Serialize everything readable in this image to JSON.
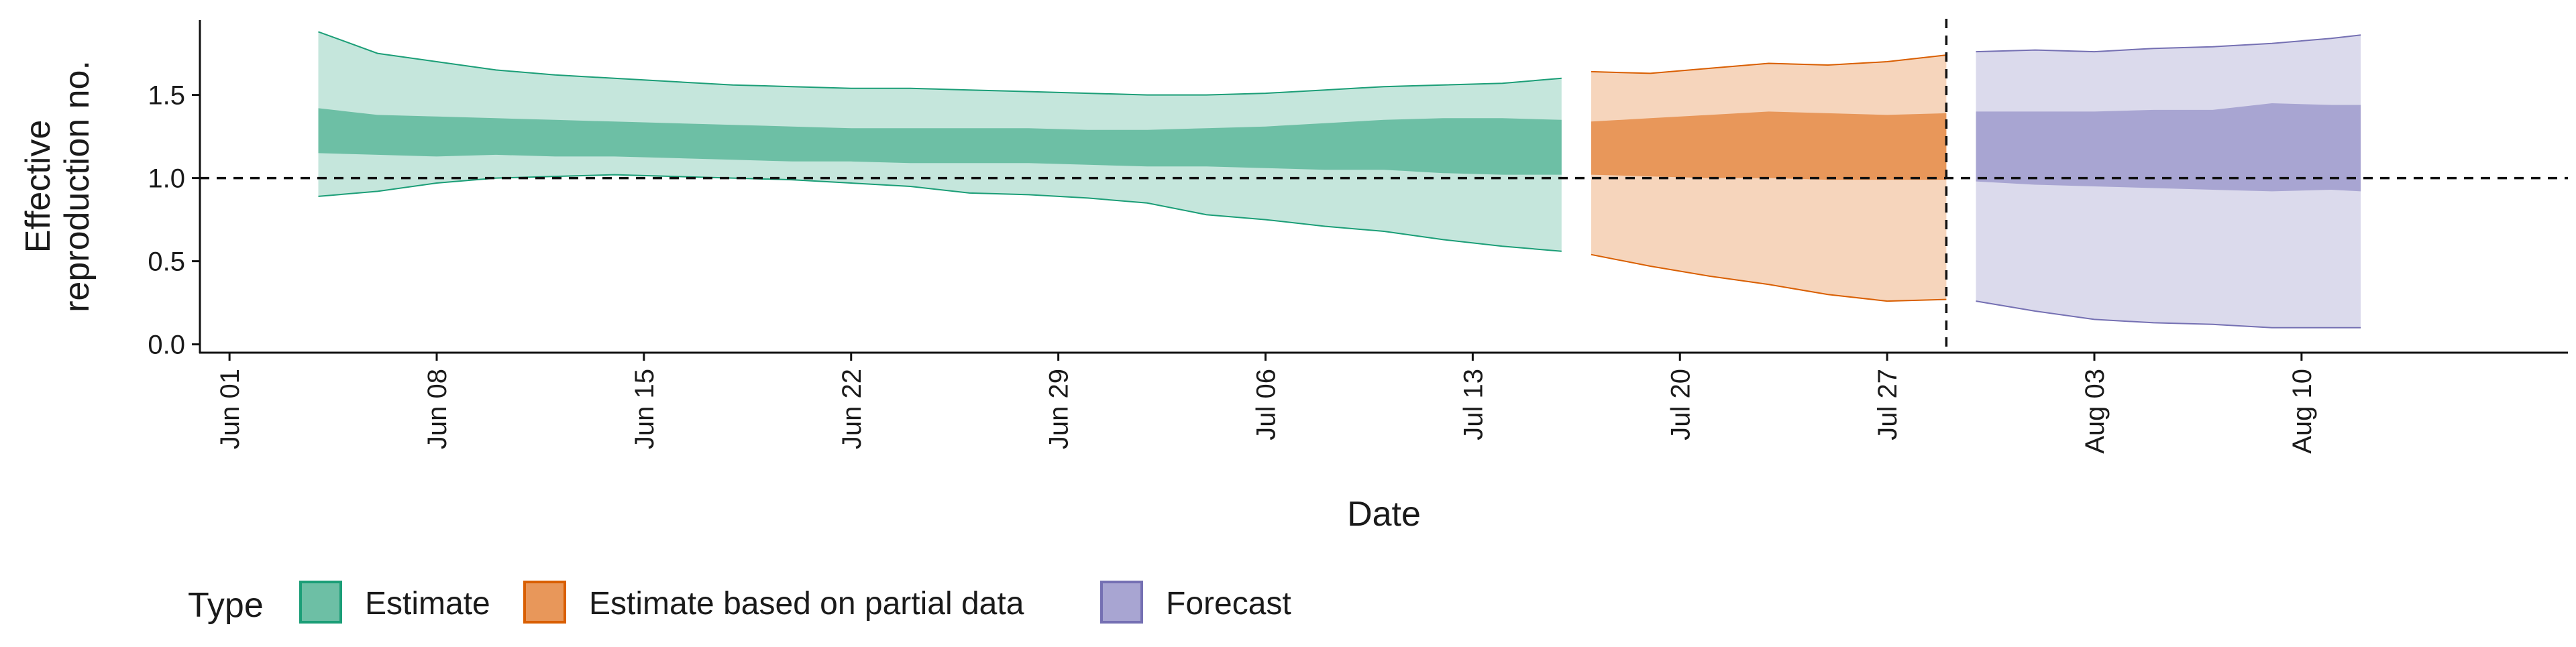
{
  "chart_data": {
    "type": "area",
    "title": "",
    "xlabel": "Date",
    "ylabel_lines": [
      "Effective",
      "reproduction no."
    ],
    "x_ticks": [
      "Jun 01",
      "Jun 08",
      "Jun 15",
      "Jun 22",
      "Jun 29",
      "Jul 06",
      "Jul 13",
      "Jul 20",
      "Jul 27",
      "Aug 03",
      "Aug 10"
    ],
    "x_tick_dates": [
      "2020-06-01",
      "2020-06-08",
      "2020-06-15",
      "2020-06-22",
      "2020-06-29",
      "2020-07-06",
      "2020-07-13",
      "2020-07-20",
      "2020-07-27",
      "2020-08-03",
      "2020-08-10"
    ],
    "xlim": [
      "2020-05-31",
      "2020-08-19"
    ],
    "y_ticks": [
      "0.0",
      "0.5",
      "1.0",
      "1.5"
    ],
    "ylim": [
      -0.05,
      1.95
    ],
    "hline": 1.0,
    "vline": "2020-07-29",
    "grid": false,
    "legend": {
      "title": "Type",
      "position": "bottom",
      "entries": [
        "Estimate",
        "Estimate based on partial data",
        "Forecast"
      ]
    },
    "colors": {
      "estimate_inner": "#6dbfa5",
      "estimate_outer": "#c5e6dc",
      "estimate_line": "#1b9e77",
      "partial_inner": "#e8975a",
      "partial_outer": "#f6d5bc",
      "partial_line": "#d95f02",
      "forecast_inner": "#a8a5d2",
      "forecast_outer": "#dbdaec",
      "forecast_line": "#7570b3"
    },
    "series": [
      {
        "name": "Estimate",
        "type_key": "estimate",
        "x": [
          "2020-06-04",
          "2020-06-06",
          "2020-06-08",
          "2020-06-10",
          "2020-06-12",
          "2020-06-14",
          "2020-06-16",
          "2020-06-18",
          "2020-06-20",
          "2020-06-22",
          "2020-06-24",
          "2020-06-26",
          "2020-06-28",
          "2020-06-30",
          "2020-07-02",
          "2020-07-04",
          "2020-07-06",
          "2020-07-08",
          "2020-07-10",
          "2020-07-12",
          "2020-07-14",
          "2020-07-16"
        ],
        "lower90": [
          0.89,
          0.92,
          0.97,
          1.0,
          1.01,
          1.02,
          1.01,
          1.0,
          0.99,
          0.97,
          0.95,
          0.91,
          0.9,
          0.88,
          0.85,
          0.78,
          0.75,
          0.71,
          0.68,
          0.63,
          0.59,
          0.56
        ],
        "upper90": [
          1.88,
          1.75,
          1.7,
          1.65,
          1.62,
          1.6,
          1.58,
          1.56,
          1.55,
          1.54,
          1.54,
          1.53,
          1.52,
          1.51,
          1.5,
          1.5,
          1.51,
          1.53,
          1.55,
          1.56,
          1.57,
          1.6
        ],
        "lower50": [
          1.15,
          1.14,
          1.13,
          1.14,
          1.13,
          1.13,
          1.12,
          1.11,
          1.1,
          1.1,
          1.09,
          1.09,
          1.09,
          1.08,
          1.07,
          1.07,
          1.06,
          1.05,
          1.05,
          1.03,
          1.02,
          1.02
        ],
        "upper50": [
          1.42,
          1.38,
          1.37,
          1.36,
          1.35,
          1.34,
          1.33,
          1.32,
          1.31,
          1.3,
          1.3,
          1.3,
          1.3,
          1.29,
          1.29,
          1.3,
          1.31,
          1.33,
          1.35,
          1.36,
          1.36,
          1.35
        ]
      },
      {
        "name": "Estimate based on partial data",
        "type_key": "partial",
        "x": [
          "2020-07-17",
          "2020-07-19",
          "2020-07-21",
          "2020-07-23",
          "2020-07-25",
          "2020-07-27",
          "2020-07-29"
        ],
        "lower90": [
          0.54,
          0.47,
          0.41,
          0.36,
          0.3,
          0.26,
          0.27
        ],
        "upper90": [
          1.64,
          1.63,
          1.66,
          1.69,
          1.68,
          1.7,
          1.74
        ],
        "lower50": [
          1.02,
          1.01,
          1.0,
          1.0,
          0.99,
          0.99,
          0.99
        ],
        "upper50": [
          1.34,
          1.36,
          1.38,
          1.4,
          1.39,
          1.38,
          1.39
        ]
      },
      {
        "name": "Forecast",
        "type_key": "forecast",
        "x": [
          "2020-07-30",
          "2020-08-01",
          "2020-08-03",
          "2020-08-05",
          "2020-08-07",
          "2020-08-09",
          "2020-08-11",
          "2020-08-12"
        ],
        "lower90": [
          0.26,
          0.2,
          0.15,
          0.13,
          0.12,
          0.1,
          0.1,
          0.1
        ],
        "upper90": [
          1.76,
          1.77,
          1.76,
          1.78,
          1.79,
          1.81,
          1.84,
          1.86
        ],
        "lower50": [
          0.98,
          0.96,
          0.95,
          0.94,
          0.93,
          0.92,
          0.93,
          0.92
        ],
        "upper50": [
          1.4,
          1.4,
          1.4,
          1.41,
          1.41,
          1.45,
          1.44,
          1.44
        ]
      }
    ]
  }
}
